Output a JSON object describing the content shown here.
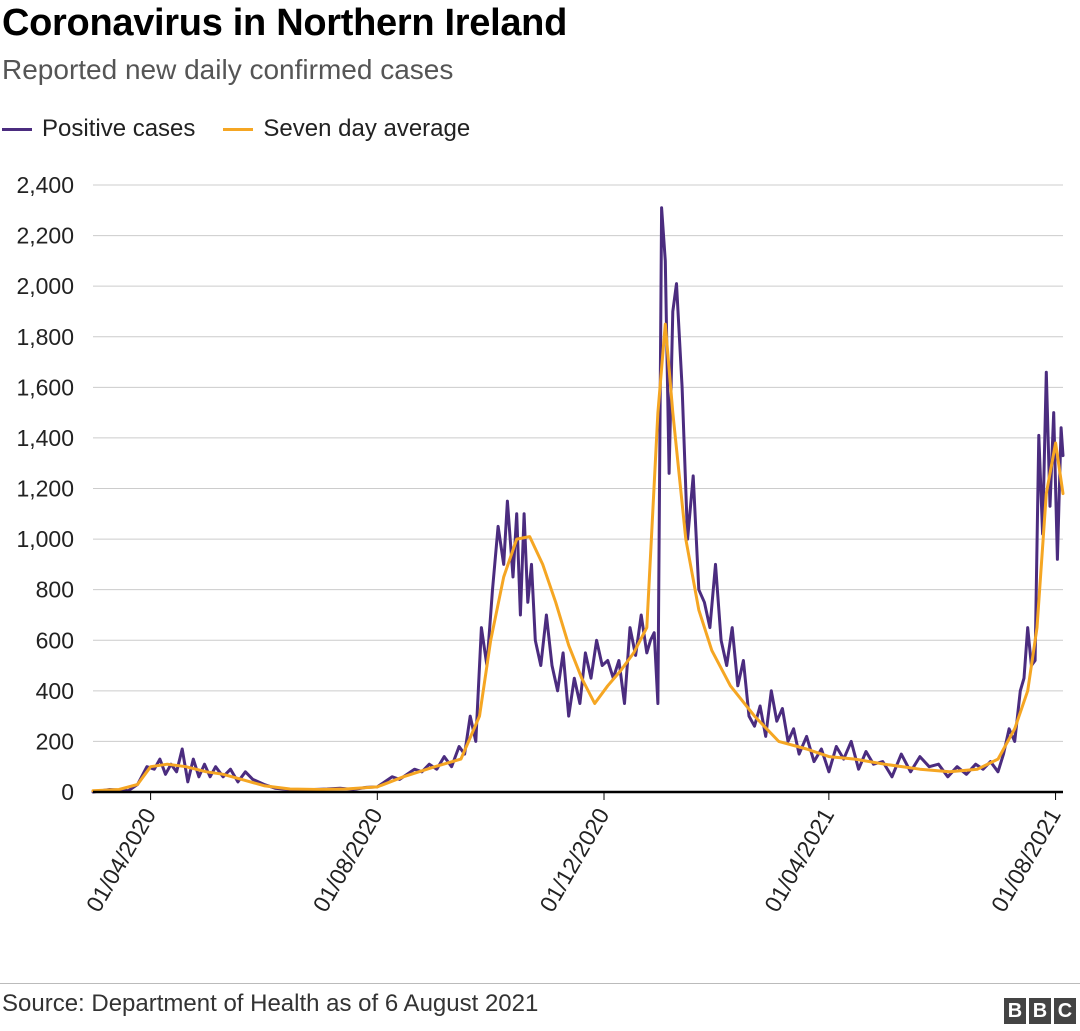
{
  "header": {
    "title": "Coronavirus in Northern Ireland",
    "subtitle": "Reported new daily confirmed cases"
  },
  "footer": {
    "source": "Source: Department of Health as of 6 August 2021",
    "logo_letters": [
      "B",
      "B",
      "C"
    ]
  },
  "colors": {
    "positive_cases": "#4b2c7f",
    "seven_day_average": "#f5a623",
    "grid": "#cccccc",
    "axis": "#000000"
  },
  "chart_data": {
    "type": "line",
    "legend_position": "top-left",
    "grid": true,
    "ylim": [
      0,
      2400
    ],
    "y_ticks": [
      0,
      200,
      400,
      600,
      800,
      1000,
      1200,
      1400,
      1600,
      1800,
      2000,
      2200,
      2400
    ],
    "y_tick_labels": [
      "0",
      "200",
      "400",
      "600",
      "800",
      "1,000",
      "1,200",
      "1,400",
      "1,600",
      "1,800",
      "2,000",
      "2,200",
      "2,400"
    ],
    "x_ticks": [
      "2020-04-01",
      "2020-08-01",
      "2020-12-01",
      "2021-04-01",
      "2021-08-01"
    ],
    "x_tick_labels": [
      "01/04/2020",
      "01/08/2020",
      "01/12/2020",
      "01/04/2021",
      "01/08/2021"
    ],
    "series": [
      {
        "name": "Positive cases",
        "x": [
          "2020-03-01",
          "2020-03-10",
          "2020-03-20",
          "2020-03-25",
          "2020-03-30",
          "2020-04-03",
          "2020-04-06",
          "2020-04-09",
          "2020-04-12",
          "2020-04-15",
          "2020-04-18",
          "2020-04-21",
          "2020-04-24",
          "2020-04-27",
          "2020-04-30",
          "2020-05-03",
          "2020-05-06",
          "2020-05-10",
          "2020-05-14",
          "2020-05-18",
          "2020-05-22",
          "2020-05-26",
          "2020-06-01",
          "2020-06-07",
          "2020-06-14",
          "2020-06-21",
          "2020-06-28",
          "2020-07-05",
          "2020-07-12",
          "2020-07-19",
          "2020-07-26",
          "2020-08-01",
          "2020-08-05",
          "2020-08-09",
          "2020-08-13",
          "2020-08-17",
          "2020-08-21",
          "2020-08-25",
          "2020-08-29",
          "2020-09-02",
          "2020-09-06",
          "2020-09-10",
          "2020-09-14",
          "2020-09-17",
          "2020-09-20",
          "2020-09-23",
          "2020-09-26",
          "2020-09-29",
          "2020-10-02",
          "2020-10-05",
          "2020-10-08",
          "2020-10-10",
          "2020-10-13",
          "2020-10-15",
          "2020-10-17",
          "2020-10-19",
          "2020-10-21",
          "2020-10-23",
          "2020-10-25",
          "2020-10-28",
          "2020-10-31",
          "2020-11-03",
          "2020-11-06",
          "2020-11-09",
          "2020-11-12",
          "2020-11-15",
          "2020-11-18",
          "2020-11-21",
          "2020-11-24",
          "2020-11-27",
          "2020-11-30",
          "2020-12-03",
          "2020-12-06",
          "2020-12-09",
          "2020-12-12",
          "2020-12-15",
          "2020-12-18",
          "2020-12-21",
          "2020-12-24",
          "2020-12-26",
          "2020-12-28",
          "2020-12-30",
          "2021-01-01",
          "2021-01-03",
          "2021-01-05",
          "2021-01-07",
          "2021-01-09",
          "2021-01-12",
          "2021-01-15",
          "2021-01-18",
          "2021-01-21",
          "2021-01-24",
          "2021-01-27",
          "2021-01-30",
          "2021-02-02",
          "2021-02-05",
          "2021-02-08",
          "2021-02-11",
          "2021-02-14",
          "2021-02-17",
          "2021-02-20",
          "2021-02-23",
          "2021-02-26",
          "2021-03-01",
          "2021-03-04",
          "2021-03-07",
          "2021-03-10",
          "2021-03-13",
          "2021-03-16",
          "2021-03-20",
          "2021-03-24",
          "2021-03-28",
          "2021-04-01",
          "2021-04-05",
          "2021-04-09",
          "2021-04-13",
          "2021-04-17",
          "2021-04-21",
          "2021-04-25",
          "2021-04-30",
          "2021-05-05",
          "2021-05-10",
          "2021-05-15",
          "2021-05-20",
          "2021-05-25",
          "2021-05-30",
          "2021-06-04",
          "2021-06-09",
          "2021-06-14",
          "2021-06-19",
          "2021-06-23",
          "2021-06-27",
          "2021-07-01",
          "2021-07-04",
          "2021-07-07",
          "2021-07-10",
          "2021-07-13",
          "2021-07-15",
          "2021-07-17",
          "2021-07-19",
          "2021-07-21",
          "2021-07-23",
          "2021-07-25",
          "2021-07-27",
          "2021-07-29",
          "2021-07-31",
          "2021-08-02",
          "2021-08-04",
          "2021-08-05"
        ],
        "values": [
          0,
          10,
          5,
          30,
          100,
          90,
          130,
          70,
          110,
          80,
          170,
          40,
          130,
          60,
          110,
          60,
          100,
          60,
          90,
          40,
          80,
          50,
          30,
          15,
          10,
          8,
          10,
          12,
          15,
          10,
          18,
          20,
          40,
          60,
          50,
          70,
          90,
          80,
          110,
          90,
          140,
          100,
          180,
          150,
          300,
          200,
          650,
          500,
          800,
          1050,
          900,
          1150,
          850,
          1100,
          700,
          1100,
          750,
          900,
          600,
          500,
          700,
          500,
          400,
          550,
          300,
          450,
          350,
          550,
          450,
          600,
          500,
          520,
          450,
          520,
          350,
          650,
          540,
          700,
          550,
          600,
          630,
          350,
          2310,
          2100,
          1260,
          1900,
          2010,
          1600,
          1000,
          1250,
          800,
          750,
          650,
          900,
          600,
          500,
          650,
          420,
          520,
          300,
          260,
          340,
          220,
          400,
          280,
          330,
          200,
          250,
          150,
          220,
          120,
          170,
          80,
          180,
          130,
          200,
          90,
          160,
          110,
          120,
          60,
          150,
          80,
          140,
          100,
          110,
          60,
          100,
          70,
          110,
          90,
          120,
          80,
          150,
          250,
          200,
          400,
          450,
          650,
          500,
          520,
          1410,
          1020,
          1660,
          1130,
          1500,
          920,
          1440,
          1330
        ],
        "values_note": ""
      },
      {
        "name": "Seven day average",
        "x": [
          "2020-03-01",
          "2020-03-15",
          "2020-03-25",
          "2020-04-01",
          "2020-04-10",
          "2020-04-20",
          "2020-05-01",
          "2020-05-10",
          "2020-05-20",
          "2020-06-01",
          "2020-06-15",
          "2020-07-01",
          "2020-07-15",
          "2020-08-01",
          "2020-08-15",
          "2020-09-01",
          "2020-09-15",
          "2020-09-25",
          "2020-10-01",
          "2020-10-08",
          "2020-10-15",
          "2020-10-22",
          "2020-10-29",
          "2020-11-05",
          "2020-11-12",
          "2020-11-19",
          "2020-11-26",
          "2020-12-03",
          "2020-12-10",
          "2020-12-17",
          "2020-12-24",
          "2020-12-30",
          "2021-01-03",
          "2021-01-07",
          "2021-01-14",
          "2021-01-21",
          "2021-01-28",
          "2021-02-07",
          "2021-02-20",
          "2021-03-05",
          "2021-03-20",
          "2021-04-01",
          "2021-04-15",
          "2021-05-01",
          "2021-05-20",
          "2021-06-05",
          "2021-06-20",
          "2021-07-01",
          "2021-07-10",
          "2021-07-17",
          "2021-07-22",
          "2021-07-27",
          "2021-08-01",
          "2021-08-05"
        ],
        "values": [
          5,
          10,
          30,
          100,
          110,
          100,
          80,
          70,
          50,
          25,
          12,
          10,
          12,
          20,
          60,
          100,
          130,
          300,
          600,
          850,
          1000,
          1010,
          900,
          750,
          580,
          450,
          350,
          420,
          480,
          550,
          650,
          1500,
          1850,
          1500,
          1000,
          720,
          560,
          420,
          300,
          200,
          170,
          140,
          130,
          110,
          90,
          80,
          90,
          130,
          250,
          400,
          650,
          1180,
          1380,
          1180
        ]
      }
    ]
  }
}
